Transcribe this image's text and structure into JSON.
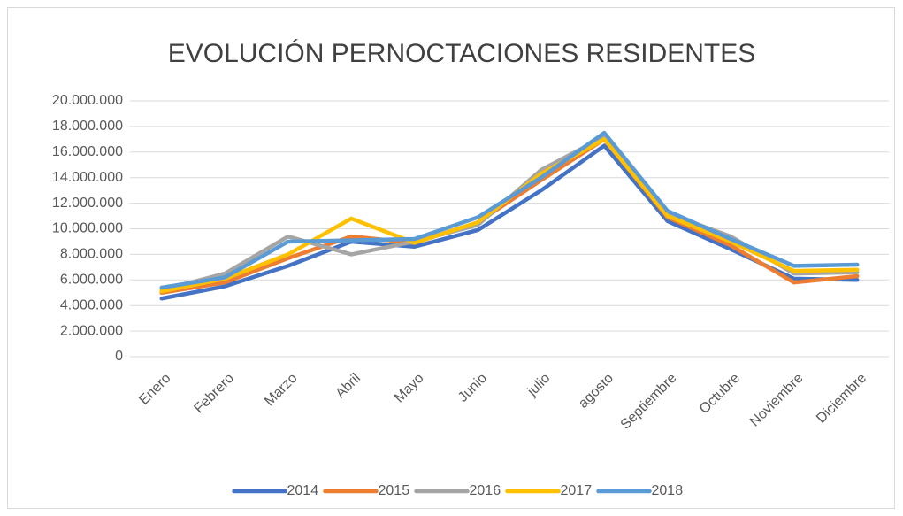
{
  "chart_data": {
    "type": "line",
    "title": "EVOLUCIÓN PERNOCTACIONES RESIDENTES",
    "categories": [
      "Enero",
      "Febrero",
      "Marzo",
      "Abril",
      "Mayo",
      "Junio",
      "julio",
      "agosto",
      "Septiembre",
      "Octubre",
      "Noviembre",
      "Diciembre"
    ],
    "series": [
      {
        "name": "2014",
        "color": "#4472c4",
        "values": [
          4550000,
          5500000,
          7100000,
          9000000,
          8600000,
          9900000,
          13000000,
          16500000,
          10600000,
          8400000,
          6100000,
          6000000
        ]
      },
      {
        "name": "2015",
        "color": "#ed7d31",
        "values": [
          5000000,
          5800000,
          7700000,
          9400000,
          8900000,
          10500000,
          13800000,
          17000000,
          10900000,
          8700000,
          5800000,
          6300000
        ]
      },
      {
        "name": "2016",
        "color": "#a5a5a5",
        "values": [
          5200000,
          6500000,
          9400000,
          8000000,
          9000000,
          10300000,
          14600000,
          17200000,
          11200000,
          9400000,
          6500000,
          6600000
        ]
      },
      {
        "name": "2017",
        "color": "#ffc000",
        "values": [
          5100000,
          6100000,
          8000000,
          10800000,
          8900000,
          10500000,
          14300000,
          17000000,
          11000000,
          9000000,
          6700000,
          6800000
        ]
      },
      {
        "name": "2018",
        "color": "#5b9bd5",
        "values": [
          5400000,
          6200000,
          9000000,
          9100000,
          9200000,
          10900000,
          14000000,
          17500000,
          11400000,
          9200000,
          7100000,
          7200000
        ]
      }
    ],
    "ylim": [
      0,
      20000000
    ],
    "yticks": [
      0,
      {
        "value": 2000000,
        "label": "2.000.000"
      },
      {
        "value": 4000000,
        "label": "4.000.000"
      },
      {
        "value": 6000000,
        "label": "6.000.000"
      },
      {
        "value": 8000000,
        "label": "8.000.000"
      },
      {
        "value": 10000000,
        "label": "10.000.000"
      },
      {
        "value": 12000000,
        "label": "12.000.000"
      },
      {
        "value": 14000000,
        "label": "14.000.000"
      },
      {
        "value": 16000000,
        "label": "16.000.000"
      },
      {
        "value": 18000000,
        "label": "18.000.000"
      },
      {
        "value": 20000000,
        "label": "20.000.000"
      }
    ],
    "grid": true,
    "legend": "bottom"
  }
}
